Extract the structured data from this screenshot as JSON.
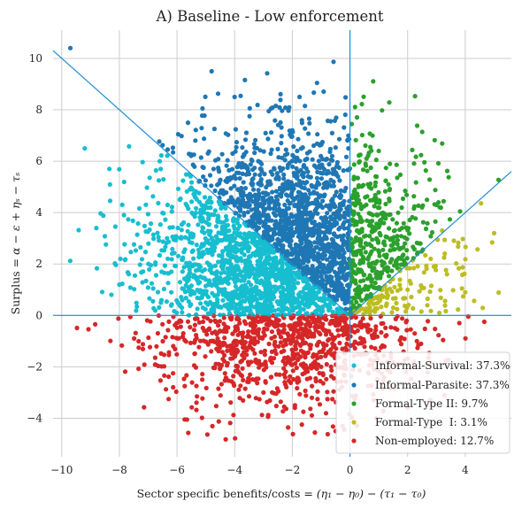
{
  "chart_data": {
    "type": "scatter",
    "title": "A) Baseline - Low enforcement",
    "xlabel": "Sector specific benefits/costs $= (\\eta_1-\\eta_0)-(\\tau_1-\\tau_0)$",
    "ylabel": "Surplus $= \\alpha - \\varepsilon + \\eta_s - \\tau_s$",
    "xlabel_parts": {
      "lead": "Sector specific benefits/costs = ",
      "formula": "(η₁ − η₀) − (τ₁ − τ₀)"
    },
    "ylabel_parts": {
      "lead": "Surplus = ",
      "formula": "α − ε + ηₛ − τₛ"
    },
    "xlim": [
      -10.3,
      5.6
    ],
    "ylim": [
      -5.5,
      11.1
    ],
    "xticks": [
      -10,
      -8,
      -6,
      -4,
      -2,
      0,
      2,
      4
    ],
    "yticks": [
      -4,
      -2,
      0,
      2,
      4,
      6,
      8,
      10
    ],
    "xtick_labels": [
      "−10",
      "−8",
      "−6",
      "−4",
      "−2",
      "0",
      "2",
      "4"
    ],
    "ytick_labels": [
      "−4",
      "−2",
      "0",
      "2",
      "4",
      "6",
      "8",
      "10"
    ],
    "grid": true,
    "legend_position": "bottom-right",
    "reference_lines": [
      {
        "kind": "horizontal",
        "y": 0
      },
      {
        "kind": "vertical",
        "x": 0
      },
      {
        "kind": "line",
        "from": [
          -10.3,
          10.3
        ],
        "to": [
          0,
          0
        ]
      },
      {
        "kind": "line",
        "from": [
          0,
          0
        ],
        "to": [
          5.6,
          5.6
        ]
      }
    ],
    "series": [
      {
        "name": "Informal-Survival: 37.3%",
        "color": "#17becf",
        "region": "x<0, 0<y<-x",
        "sample_points": [
          [
            -6.6,
            6.0
          ],
          [
            -7.9,
            4.3
          ],
          [
            -8.0,
            1.2
          ],
          [
            -5.9,
            4.5
          ],
          [
            -4.8,
            2.8
          ],
          [
            -3.5,
            1.5
          ],
          [
            -2.2,
            0.6
          ],
          [
            -6.2,
            0.9
          ],
          [
            -5.0,
            0.5
          ],
          [
            -8.8,
            3.4
          ],
          [
            -9.2,
            6.5
          ]
        ]
      },
      {
        "name": "Informal-Parasite: 37.3%",
        "color": "#1f77b4",
        "region": "x<0, y>-x",
        "sample_points": [
          [
            -9.7,
            10.4
          ],
          [
            -4.8,
            9.5
          ],
          [
            -4.0,
            8.5
          ],
          [
            -2.0,
            7.2
          ],
          [
            -3.5,
            5.5
          ],
          [
            -1.0,
            3.5
          ],
          [
            -0.5,
            2.0
          ]
        ]
      },
      {
        "name": "Formal-Type II: 9.7%",
        "color": "#2ca02c",
        "region": "x>0, y>x",
        "sample_points": [
          [
            1.0,
            6.4
          ],
          [
            0.3,
            5.0
          ],
          [
            1.5,
            3.0
          ],
          [
            2.5,
            4.2
          ],
          [
            3.0,
            4.3
          ],
          [
            0.5,
            1.0
          ]
        ]
      },
      {
        "name": "Formal-Type  I: 3.1%",
        "color": "#bcbd22",
        "region": "x>0, 0<y<x",
        "sample_points": [
          [
            5.0,
            3.2
          ],
          [
            4.0,
            0.9
          ],
          [
            3.2,
            3.3
          ],
          [
            2.0,
            1.0
          ],
          [
            1.5,
            0.3
          ],
          [
            2.8,
            2.2
          ]
        ]
      },
      {
        "name": "Non-employed: 12.7%",
        "color": "#d62728",
        "region": "y<0",
        "sample_points": [
          [
            -5.9,
            -0.2
          ],
          [
            -3.0,
            -3.0
          ],
          [
            -1.0,
            -2.0
          ],
          [
            -0.5,
            -4.5
          ],
          [
            0.5,
            -1.5
          ],
          [
            -4.0,
            -1.0
          ],
          [
            -2.0,
            -0.8
          ]
        ]
      }
    ]
  }
}
